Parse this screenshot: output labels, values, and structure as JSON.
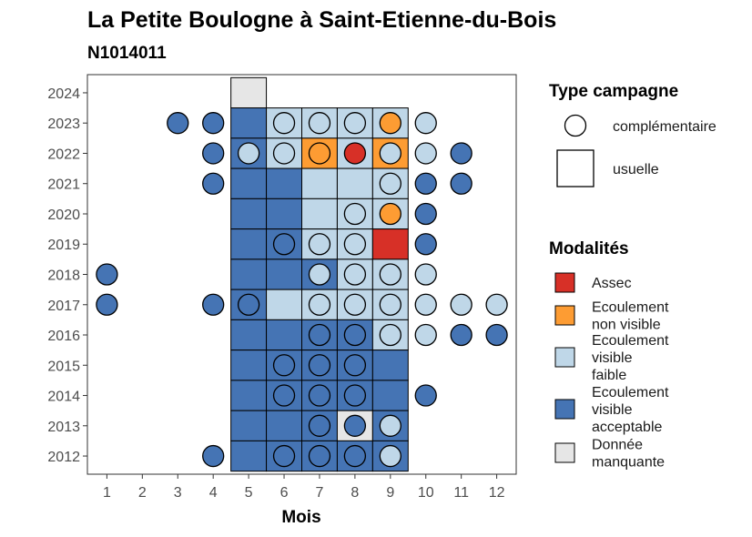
{
  "chart_data": {
    "type": "heatmap",
    "title": "La Petite Boulogne à Saint-Etienne-du-Bois",
    "subtitle": "N1014011",
    "xlabel": "Mois",
    "ylabel": "",
    "x_ticks": [
      "1",
      "2",
      "3",
      "4",
      "5",
      "6",
      "7",
      "8",
      "9",
      "10",
      "11",
      "12"
    ],
    "y_ticks": [
      "2012",
      "2013",
      "2014",
      "2015",
      "2016",
      "2017",
      "2018",
      "2019",
      "2020",
      "2021",
      "2022",
      "2023",
      "2024"
    ],
    "xlim": [
      0.45,
      12.55
    ],
    "ylim": [
      2011.4,
      2024.6
    ],
    "grid": false,
    "legend_position": "right",
    "colors": {
      "Assec": "#d73027",
      "Ecoulement non visible": "#fd9c33",
      "Ecoulement visible faible": "#bfd7e8",
      "Ecoulement visible acceptable": "#4574b4",
      "Donnée manquante": "#e6e6e6"
    },
    "legend_shape": {
      "title": "Type campagne",
      "entries": [
        {
          "label": "complémentaire",
          "shape": "circle"
        },
        {
          "label": "usuelle",
          "shape": "square"
        }
      ]
    },
    "legend_fill": {
      "title": "Modalités",
      "entries": [
        {
          "lines": [
            "Assec"
          ],
          "key": "Assec"
        },
        {
          "lines": [
            "Ecoulement",
            "non visible"
          ],
          "key": "Ecoulement non visible"
        },
        {
          "lines": [
            "Ecoulement",
            "visible",
            "faible"
          ],
          "key": "Ecoulement visible faible"
        },
        {
          "lines": [
            "Ecoulement",
            "visible",
            "acceptable"
          ],
          "key": "Ecoulement visible acceptable"
        },
        {
          "lines": [
            "Donnée",
            "manquante"
          ],
          "key": "Donnée manquante"
        }
      ]
    },
    "usuelle": [
      {
        "year": 2024,
        "month": 5,
        "value": "Donnée manquante"
      },
      {
        "year": 2023,
        "month": 5,
        "value": "Ecoulement visible acceptable"
      },
      {
        "year": 2023,
        "month": 6,
        "value": "Ecoulement visible faible"
      },
      {
        "year": 2023,
        "month": 7,
        "value": "Ecoulement visible faible"
      },
      {
        "year": 2023,
        "month": 8,
        "value": "Ecoulement visible faible"
      },
      {
        "year": 2023,
        "month": 9,
        "value": "Ecoulement visible faible"
      },
      {
        "year": 2022,
        "month": 5,
        "value": "Ecoulement visible acceptable"
      },
      {
        "year": 2022,
        "month": 6,
        "value": "Ecoulement visible faible"
      },
      {
        "year": 2022,
        "month": 7,
        "value": "Ecoulement non visible"
      },
      {
        "year": 2022,
        "month": 8,
        "value": "Ecoulement visible faible"
      },
      {
        "year": 2022,
        "month": 9,
        "value": "Ecoulement non visible"
      },
      {
        "year": 2021,
        "month": 5,
        "value": "Ecoulement visible acceptable"
      },
      {
        "year": 2021,
        "month": 6,
        "value": "Ecoulement visible acceptable"
      },
      {
        "year": 2021,
        "month": 7,
        "value": "Ecoulement visible faible"
      },
      {
        "year": 2021,
        "month": 8,
        "value": "Ecoulement visible faible"
      },
      {
        "year": 2021,
        "month": 9,
        "value": "Ecoulement visible faible"
      },
      {
        "year": 2020,
        "month": 5,
        "value": "Ecoulement visible acceptable"
      },
      {
        "year": 2020,
        "month": 6,
        "value": "Ecoulement visible acceptable"
      },
      {
        "year": 2020,
        "month": 7,
        "value": "Ecoulement visible faible"
      },
      {
        "year": 2020,
        "month": 8,
        "value": "Ecoulement visible faible"
      },
      {
        "year": 2020,
        "month": 9,
        "value": "Ecoulement visible faible"
      },
      {
        "year": 2019,
        "month": 5,
        "value": "Ecoulement visible acceptable"
      },
      {
        "year": 2019,
        "month": 6,
        "value": "Ecoulement visible acceptable"
      },
      {
        "year": 2019,
        "month": 7,
        "value": "Ecoulement visible faible"
      },
      {
        "year": 2019,
        "month": 8,
        "value": "Ecoulement visible faible"
      },
      {
        "year": 2019,
        "month": 9,
        "value": "Assec"
      },
      {
        "year": 2018,
        "month": 5,
        "value": "Ecoulement visible acceptable"
      },
      {
        "year": 2018,
        "month": 6,
        "value": "Ecoulement visible acceptable"
      },
      {
        "year": 2018,
        "month": 7,
        "value": "Ecoulement visible acceptable"
      },
      {
        "year": 2018,
        "month": 8,
        "value": "Ecoulement visible faible"
      },
      {
        "year": 2018,
        "month": 9,
        "value": "Ecoulement visible faible"
      },
      {
        "year": 2017,
        "month": 5,
        "value": "Ecoulement visible acceptable"
      },
      {
        "year": 2017,
        "month": 6,
        "value": "Ecoulement visible faible"
      },
      {
        "year": 2017,
        "month": 7,
        "value": "Ecoulement visible faible"
      },
      {
        "year": 2017,
        "month": 8,
        "value": "Ecoulement visible faible"
      },
      {
        "year": 2017,
        "month": 9,
        "value": "Ecoulement visible faible"
      },
      {
        "year": 2016,
        "month": 5,
        "value": "Ecoulement visible acceptable"
      },
      {
        "year": 2016,
        "month": 6,
        "value": "Ecoulement visible acceptable"
      },
      {
        "year": 2016,
        "month": 7,
        "value": "Ecoulement visible acceptable"
      },
      {
        "year": 2016,
        "month": 8,
        "value": "Ecoulement visible acceptable"
      },
      {
        "year": 2016,
        "month": 9,
        "value": "Ecoulement visible faible"
      },
      {
        "year": 2015,
        "month": 5,
        "value": "Ecoulement visible acceptable"
      },
      {
        "year": 2015,
        "month": 6,
        "value": "Ecoulement visible acceptable"
      },
      {
        "year": 2015,
        "month": 7,
        "value": "Ecoulement visible acceptable"
      },
      {
        "year": 2015,
        "month": 8,
        "value": "Ecoulement visible acceptable"
      },
      {
        "year": 2015,
        "month": 9,
        "value": "Ecoulement visible acceptable"
      },
      {
        "year": 2014,
        "month": 5,
        "value": "Ecoulement visible acceptable"
      },
      {
        "year": 2014,
        "month": 6,
        "value": "Ecoulement visible acceptable"
      },
      {
        "year": 2014,
        "month": 7,
        "value": "Ecoulement visible acceptable"
      },
      {
        "year": 2014,
        "month": 8,
        "value": "Ecoulement visible acceptable"
      },
      {
        "year": 2014,
        "month": 9,
        "value": "Ecoulement visible acceptable"
      },
      {
        "year": 2013,
        "month": 5,
        "value": "Ecoulement visible acceptable"
      },
      {
        "year": 2013,
        "month": 6,
        "value": "Ecoulement visible acceptable"
      },
      {
        "year": 2013,
        "month": 7,
        "value": "Ecoulement visible acceptable"
      },
      {
        "year": 2013,
        "month": 8,
        "value": "Donnée manquante"
      },
      {
        "year": 2013,
        "month": 9,
        "value": "Ecoulement visible acceptable"
      },
      {
        "year": 2012,
        "month": 5,
        "value": "Ecoulement visible acceptable"
      },
      {
        "year": 2012,
        "month": 6,
        "value": "Ecoulement visible acceptable"
      },
      {
        "year": 2012,
        "month": 7,
        "value": "Ecoulement visible acceptable"
      },
      {
        "year": 2012,
        "month": 8,
        "value": "Ecoulement visible acceptable"
      },
      {
        "year": 2012,
        "month": 9,
        "value": "Ecoulement visible acceptable"
      }
    ],
    "complementaire": [
      {
        "year": 2023,
        "month": 3,
        "value": "Ecoulement visible acceptable"
      },
      {
        "year": 2023,
        "month": 4,
        "value": "Ecoulement visible acceptable"
      },
      {
        "year": 2023,
        "month": 6,
        "value": "Ecoulement visible faible"
      },
      {
        "year": 2023,
        "month": 7,
        "value": "Ecoulement visible faible"
      },
      {
        "year": 2023,
        "month": 8,
        "value": "Ecoulement visible faible"
      },
      {
        "year": 2023,
        "month": 9,
        "value": "Ecoulement non visible"
      },
      {
        "year": 2023,
        "month": 10,
        "value": "Ecoulement visible faible"
      },
      {
        "year": 2022,
        "month": 4,
        "value": "Ecoulement visible acceptable"
      },
      {
        "year": 2022,
        "month": 5,
        "value": "Ecoulement visible faible"
      },
      {
        "year": 2022,
        "month": 6,
        "value": "Ecoulement visible faible"
      },
      {
        "year": 2022,
        "month": 7,
        "value": "Ecoulement non visible"
      },
      {
        "year": 2022,
        "month": 8,
        "value": "Assec"
      },
      {
        "year": 2022,
        "month": 9,
        "value": "Ecoulement visible faible"
      },
      {
        "year": 2022,
        "month": 10,
        "value": "Ecoulement visible faible"
      },
      {
        "year": 2022,
        "month": 11,
        "value": "Ecoulement visible acceptable"
      },
      {
        "year": 2021,
        "month": 4,
        "value": "Ecoulement visible acceptable"
      },
      {
        "year": 2021,
        "month": 9,
        "value": "Ecoulement visible faible"
      },
      {
        "year": 2021,
        "month": 10,
        "value": "Ecoulement visible acceptable"
      },
      {
        "year": 2021,
        "month": 11,
        "value": "Ecoulement visible acceptable"
      },
      {
        "year": 2020,
        "month": 8,
        "value": "Ecoulement visible faible"
      },
      {
        "year": 2020,
        "month": 9,
        "value": "Ecoulement non visible"
      },
      {
        "year": 2020,
        "month": 10,
        "value": "Ecoulement visible acceptable"
      },
      {
        "year": 2019,
        "month": 6,
        "value": "Ecoulement visible acceptable"
      },
      {
        "year": 2019,
        "month": 7,
        "value": "Ecoulement visible faible"
      },
      {
        "year": 2019,
        "month": 8,
        "value": "Ecoulement visible faible"
      },
      {
        "year": 2019,
        "month": 10,
        "value": "Ecoulement visible acceptable"
      },
      {
        "year": 2018,
        "month": 1,
        "value": "Ecoulement visible acceptable"
      },
      {
        "year": 2018,
        "month": 7,
        "value": "Ecoulement visible faible"
      },
      {
        "year": 2018,
        "month": 8,
        "value": "Ecoulement visible faible"
      },
      {
        "year": 2018,
        "month": 9,
        "value": "Ecoulement visible faible"
      },
      {
        "year": 2018,
        "month": 10,
        "value": "Ecoulement visible faible"
      },
      {
        "year": 2017,
        "month": 1,
        "value": "Ecoulement visible acceptable"
      },
      {
        "year": 2017,
        "month": 4,
        "value": "Ecoulement visible acceptable"
      },
      {
        "year": 2017,
        "month": 5,
        "value": "Ecoulement visible acceptable"
      },
      {
        "year": 2017,
        "month": 7,
        "value": "Ecoulement visible faible"
      },
      {
        "year": 2017,
        "month": 8,
        "value": "Ecoulement visible faible"
      },
      {
        "year": 2017,
        "month": 9,
        "value": "Ecoulement visible faible"
      },
      {
        "year": 2017,
        "month": 10,
        "value": "Ecoulement visible faible"
      },
      {
        "year": 2017,
        "month": 11,
        "value": "Ecoulement visible faible"
      },
      {
        "year": 2017,
        "month": 12,
        "value": "Ecoulement visible faible"
      },
      {
        "year": 2016,
        "month": 7,
        "value": "Ecoulement visible acceptable"
      },
      {
        "year": 2016,
        "month": 8,
        "value": "Ecoulement visible acceptable"
      },
      {
        "year": 2016,
        "month": 9,
        "value": "Ecoulement visible faible"
      },
      {
        "year": 2016,
        "month": 10,
        "value": "Ecoulement visible faible"
      },
      {
        "year": 2016,
        "month": 11,
        "value": "Ecoulement visible acceptable"
      },
      {
        "year": 2016,
        "month": 12,
        "value": "Ecoulement visible acceptable"
      },
      {
        "year": 2015,
        "month": 6,
        "value": "Ecoulement visible acceptable"
      },
      {
        "year": 2015,
        "month": 7,
        "value": "Ecoulement visible acceptable"
      },
      {
        "year": 2015,
        "month": 8,
        "value": "Ecoulement visible acceptable"
      },
      {
        "year": 2014,
        "month": 6,
        "value": "Ecoulement visible acceptable"
      },
      {
        "year": 2014,
        "month": 7,
        "value": "Ecoulement visible acceptable"
      },
      {
        "year": 2014,
        "month": 8,
        "value": "Ecoulement visible acceptable"
      },
      {
        "year": 2014,
        "month": 10,
        "value": "Ecoulement visible acceptable"
      },
      {
        "year": 2013,
        "month": 7,
        "value": "Ecoulement visible acceptable"
      },
      {
        "year": 2013,
        "month": 8,
        "value": "Ecoulement visible acceptable"
      },
      {
        "year": 2013,
        "month": 9,
        "value": "Ecoulement visible faible"
      },
      {
        "year": 2012,
        "month": 4,
        "value": "Ecoulement visible acceptable"
      },
      {
        "year": 2012,
        "month": 6,
        "value": "Ecoulement visible acceptable"
      },
      {
        "year": 2012,
        "month": 7,
        "value": "Ecoulement visible acceptable"
      },
      {
        "year": 2012,
        "month": 8,
        "value": "Ecoulement visible acceptable"
      },
      {
        "year": 2012,
        "month": 9,
        "value": "Ecoulement visible faible"
      }
    ]
  }
}
